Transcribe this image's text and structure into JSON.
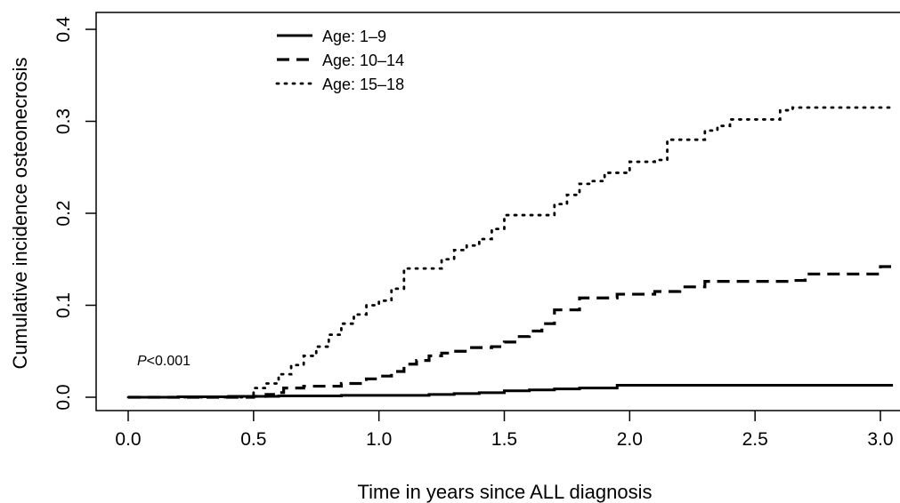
{
  "chart_data": {
    "type": "line",
    "xlabel": "Time in years since ALL diagnosis",
    "ylabel": "Cumulative incidence osteonecrosis",
    "xlim": [
      0,
      3.05
    ],
    "ylim": [
      0,
      0.4
    ],
    "x_ticks": [
      0.0,
      0.5,
      1.0,
      1.5,
      2.0,
      2.5,
      3.0
    ],
    "x_tick_labels": [
      "0.0",
      "0.5",
      "1.0",
      "1.5",
      "2.0",
      "2.5",
      "3.0"
    ],
    "y_ticks": [
      0.0,
      0.1,
      0.2,
      0.3,
      0.4
    ],
    "y_tick_labels": [
      "0.0",
      "0.1",
      "0.2",
      "0.3",
      "0.4"
    ],
    "grid": false,
    "legend_position": "top-left",
    "annotation": {
      "italic": "P",
      "text": "<0.001"
    },
    "series": [
      {
        "name": "Age: 1–9",
        "style": "solid",
        "color": "#000000",
        "x": [
          0.0,
          0.2,
          0.4,
          0.6,
          0.85,
          1.0,
          1.2,
          1.3,
          1.4,
          1.5,
          1.6,
          1.7,
          1.8,
          1.95,
          3.05
        ],
        "y": [
          0.0,
          0.0005,
          0.001,
          0.0015,
          0.002,
          0.002,
          0.003,
          0.004,
          0.005,
          0.007,
          0.008,
          0.009,
          0.01,
          0.013,
          0.013
        ]
      },
      {
        "name": "Age: 10–14",
        "style": "dashed",
        "color": "#000000",
        "x": [
          0.0,
          0.5,
          0.55,
          0.6,
          0.62,
          0.7,
          0.85,
          0.95,
          1.0,
          1.05,
          1.1,
          1.15,
          1.2,
          1.25,
          1.3,
          1.35,
          1.45,
          1.5,
          1.55,
          1.6,
          1.65,
          1.7,
          1.8,
          1.95,
          2.1,
          2.2,
          2.3,
          2.5,
          2.65,
          2.7,
          3.0,
          3.05
        ],
        "y": [
          0.0,
          0.001,
          0.003,
          0.005,
          0.01,
          0.012,
          0.015,
          0.02,
          0.023,
          0.028,
          0.036,
          0.04,
          0.045,
          0.048,
          0.05,
          0.054,
          0.055,
          0.06,
          0.066,
          0.072,
          0.08,
          0.095,
          0.108,
          0.112,
          0.115,
          0.12,
          0.126,
          0.126,
          0.127,
          0.134,
          0.142,
          0.142
        ]
      },
      {
        "name": "Age: 15–18",
        "style": "dotted",
        "color": "#000000",
        "x": [
          0.0,
          0.46,
          0.5,
          0.55,
          0.6,
          0.65,
          0.7,
          0.75,
          0.8,
          0.85,
          0.9,
          0.95,
          1.0,
          1.05,
          1.1,
          1.15,
          1.2,
          1.25,
          1.3,
          1.35,
          1.4,
          1.45,
          1.5,
          1.6,
          1.7,
          1.75,
          1.8,
          1.85,
          1.9,
          2.0,
          2.1,
          2.15,
          2.3,
          2.35,
          2.4,
          2.5,
          2.6,
          2.65,
          3.05
        ],
        "y": [
          0.0,
          0.001,
          0.01,
          0.015,
          0.025,
          0.035,
          0.045,
          0.055,
          0.068,
          0.08,
          0.09,
          0.1,
          0.105,
          0.118,
          0.14,
          0.14,
          0.14,
          0.15,
          0.16,
          0.165,
          0.172,
          0.183,
          0.198,
          0.198,
          0.21,
          0.22,
          0.232,
          0.235,
          0.244,
          0.256,
          0.258,
          0.28,
          0.29,
          0.295,
          0.302,
          0.302,
          0.312,
          0.315,
          0.315
        ]
      }
    ]
  }
}
